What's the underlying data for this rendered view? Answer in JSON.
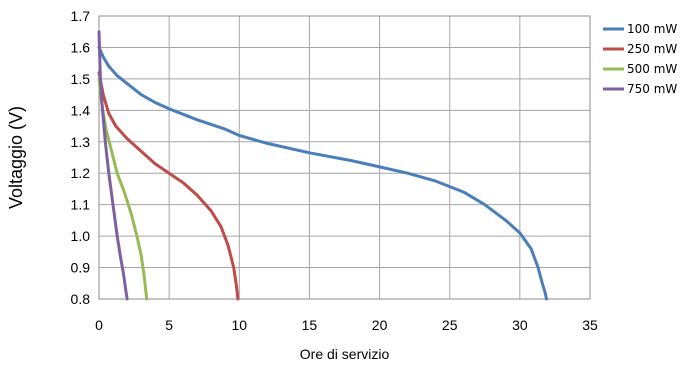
{
  "chart_data": {
    "type": "line",
    "title": "",
    "xlabel": "Ore di servizio",
    "ylabel": "Voltaggio (V)",
    "xlim": [
      0,
      35
    ],
    "ylim": [
      0.8,
      1.7
    ],
    "xticks": [
      0,
      5,
      10,
      15,
      20,
      25,
      30,
      35
    ],
    "yticks": [
      0.8,
      0.9,
      1.0,
      1.1,
      1.2,
      1.3,
      1.4,
      1.5,
      1.6,
      1.7
    ],
    "x_tick_labels": [
      "0",
      "5",
      "10",
      "15",
      "20",
      "25",
      "30",
      "35"
    ],
    "y_tick_labels": [
      "0.8",
      "0.9",
      "1.0",
      "1.1",
      "1.2",
      "1.3",
      "1.4",
      "1.5",
      "1.6",
      "1.7"
    ],
    "grid": true,
    "legend_position": "right",
    "series": [
      {
        "name": "100 mW",
        "color": "#4a7ebb",
        "x": [
          0,
          0.3,
          0.7,
          1.3,
          2,
          3,
          4,
          5,
          7,
          9,
          10,
          12,
          15,
          18,
          20,
          22,
          24,
          26,
          27.5,
          29,
          30,
          30.8,
          31.3,
          31.6,
          31.8,
          31.9
        ],
        "y": [
          1.6,
          1.57,
          1.54,
          1.51,
          1.485,
          1.45,
          1.425,
          1.405,
          1.37,
          1.34,
          1.32,
          1.295,
          1.265,
          1.24,
          1.22,
          1.2,
          1.175,
          1.14,
          1.1,
          1.05,
          1.01,
          0.96,
          0.9,
          0.85,
          0.82,
          0.8
        ]
      },
      {
        "name": "250 mW",
        "color": "#be4b48",
        "x": [
          0,
          0.3,
          0.7,
          1.2,
          2,
          3,
          4,
          5,
          6,
          7,
          8,
          8.7,
          9.2,
          9.6,
          9.8,
          9.9
        ],
        "y": [
          1.52,
          1.45,
          1.39,
          1.35,
          1.31,
          1.27,
          1.23,
          1.2,
          1.17,
          1.13,
          1.08,
          1.03,
          0.97,
          0.9,
          0.84,
          0.8
        ]
      },
      {
        "name": "500 mW",
        "color": "#98b954",
        "x": [
          0,
          0.2,
          0.5,
          0.9,
          1.3,
          1.8,
          2.3,
          2.7,
          3.0,
          3.2,
          3.3,
          3.4
        ],
        "y": [
          1.5,
          1.42,
          1.34,
          1.27,
          1.2,
          1.14,
          1.07,
          1.0,
          0.94,
          0.88,
          0.84,
          0.8
        ]
      },
      {
        "name": "750 mW",
        "color": "#7d60a0",
        "x": [
          0,
          0.1,
          0.25,
          0.45,
          0.7,
          1.0,
          1.3,
          1.55,
          1.75,
          1.9,
          2.0
        ],
        "y": [
          1.65,
          1.5,
          1.4,
          1.3,
          1.2,
          1.1,
          1.0,
          0.93,
          0.88,
          0.83,
          0.8
        ]
      }
    ]
  }
}
